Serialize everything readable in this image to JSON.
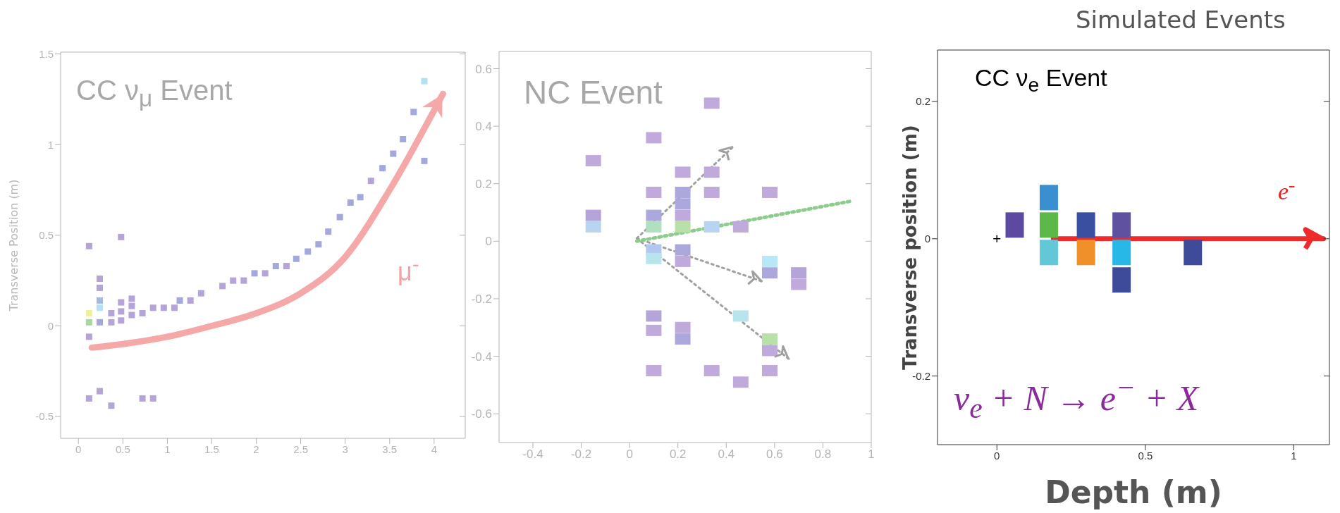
{
  "chart_data": [
    {
      "type": "scatter",
      "title": "CC ν$_{μ}$ Event",
      "ylabel": "Transverse Position (m)",
      "xlim": [
        -0.2,
        4.35
      ],
      "ylim": [
        -0.62,
        1.51
      ],
      "xticks": [
        0,
        0.5,
        1,
        1.5,
        2,
        2.5,
        3,
        3.5,
        4
      ],
      "yticks": [
        -0.5,
        0,
        0.5,
        1,
        1.5
      ],
      "annotations": [
        "μ$^{-}$"
      ],
      "series": [
        {
          "marker": "square",
          "x": [
            0.12,
            0.48,
            0.12,
            0.24,
            0.37,
            0.72,
            0.84,
            0.12,
            0.12,
            0.12,
            0.24,
            0.24,
            0.24,
            0.24,
            0.24,
            0.37,
            0.37,
            0.48,
            0.48,
            0.48,
            0.6,
            0.6,
            0.6,
            0.72,
            0.84,
            0.96,
            1.08,
            1.14,
            1.26,
            1.38,
            1.62,
            1.74,
            1.86,
            1.98,
            2.1,
            2.22,
            2.34,
            2.45,
            2.58,
            2.7,
            2.81,
            2.94,
            3.06,
            3.17,
            3.29,
            3.42,
            3.54,
            3.65,
            3.77,
            3.89,
            3.89
          ],
          "values": [
            0.44,
            0.49,
            -0.4,
            -0.36,
            -0.44,
            -0.4,
            -0.4,
            -0.06,
            0.02,
            0.07,
            0.02,
            0.1,
            0.14,
            0.21,
            0.26,
            0.02,
            0.07,
            0.03,
            0.08,
            0.13,
            0.06,
            0.11,
            0.15,
            0.07,
            0.1,
            0.1,
            0.1,
            0.14,
            0.14,
            0.18,
            0.22,
            0.25,
            0.25,
            0.29,
            0.29,
            0.33,
            0.33,
            0.37,
            0.41,
            0.45,
            0.52,
            0.6,
            0.68,
            0.71,
            0.8,
            0.87,
            0.95,
            1.03,
            1.18,
            1.35,
            0.91
          ],
          "colors": [
            "#b4a4d8",
            "#b4a4d8",
            "#b4a4d8",
            "#b4a4d8",
            "#b4a4d8",
            "#b4a4d8",
            "#b4a4d8",
            "#b4a4d8",
            "#a8d8a0",
            "#f0f0a0",
            "#a4a8dc",
            "#b4e0f4",
            "#a4b8e8",
            "#b4a4d8",
            "#b4a4d8",
            "#b4a4d8",
            "#b4a4d8",
            "#b4a4d8",
            "#b4a4d8",
            "#b4a4d8",
            "#b4a4d8",
            "#b4a4d8",
            "#b4a4d8",
            "#b4a4d8",
            "#b4a4d8",
            "#b4a4d8",
            "#b4a4d8",
            "#a4a8dc",
            "#b4a4d8",
            "#b4a4d8",
            "#b4a4d8",
            "#b4a4d8",
            "#b4a4d8",
            "#a4a8dc",
            "#b4a4d8",
            "#a4a8dc",
            "#b4a4d8",
            "#a4a8dc",
            "#a4a8dc",
            "#a4a8dc",
            "#a4a8dc",
            "#a4a8dc",
            "#a4a8dc",
            "#a4a8dc",
            "#b4a4d8",
            "#a4a8dc",
            "#a4a8dc",
            "#a4a8dc",
            "#a4a8dc",
            "#b4e0f4",
            "#a4a8dc"
          ]
        },
        {
          "type": "line",
          "marker": "none",
          "line_style": "solid",
          "color": "#f4a8a8",
          "x": [
            0.15,
            0.5,
            1,
            1.5,
            2,
            2.5,
            3,
            3.5,
            4.1
          ],
          "values": [
            -0.12,
            -0.1,
            -0.06,
            0.0,
            0.07,
            0.18,
            0.38,
            0.75,
            1.28
          ]
        }
      ]
    },
    {
      "type": "scatter",
      "title": "NC Event",
      "xlim": [
        -0.54,
        1.0
      ],
      "ylim": [
        -0.7,
        0.66
      ],
      "xticks": [
        -0.4,
        -0.2,
        0,
        0.2,
        0.4,
        0.6,
        0.8,
        1
      ],
      "yticks": [
        -0.6,
        -0.4,
        -0.2,
        0,
        0.2,
        0.4,
        0.6
      ],
      "series": [
        {
          "marker": "square",
          "x": [
            -0.15,
            -0.15,
            -0.15,
            0.1,
            0.1,
            0.1,
            0.1,
            0.1,
            0.1,
            0.1,
            0.1,
            0.1,
            0.22,
            0.22,
            0.22,
            0.22,
            0.22,
            0.22,
            0.22,
            0.22,
            0.22,
            0.34,
            0.34,
            0.34,
            0.34,
            0.34,
            0.46,
            0.46,
            0.46,
            0.58,
            0.58,
            0.58,
            0.58,
            0.58,
            0.58,
            0.7,
            0.7
          ],
          "values": [
            0.28,
            0.09,
            0.05,
            0.36,
            0.17,
            0.09,
            0.05,
            -0.03,
            -0.06,
            -0.26,
            -0.31,
            -0.45,
            0.24,
            0.17,
            0.13,
            0.09,
            0.05,
            -0.03,
            -0.07,
            -0.3,
            -0.34,
            0.48,
            0.24,
            0.17,
            0.05,
            -0.45,
            0.05,
            -0.26,
            -0.49,
            0.17,
            -0.07,
            -0.11,
            -0.34,
            -0.38,
            -0.45,
            -0.11,
            -0.15
          ],
          "colors": [
            "#c0aadc",
            "#b4a4d8",
            "#b8d4f0",
            "#c0aadc",
            "#c0aadc",
            "#aca8dc",
            "#b0e0c0",
            "#b0c8f0",
            "#b8e4ec",
            "#b4a4d8",
            "#c0aadc",
            "#c0aadc",
            "#c0aadc",
            "#aca8dc",
            "#aca8dc",
            "#c0aadc",
            "#b8e0a8",
            "#aca8dc",
            "#c0aadc",
            "#c0aadc",
            "#aca8dc",
            "#c0aadc",
            "#c0aadc",
            "#c0aadc",
            "#b8d4f0",
            "#c0aadc",
            "#c0aadc",
            "#b8e4ec",
            "#c0aadc",
            "#c0aadc",
            "#b8e8f8",
            "#aca8dc",
            "#b8e0a8",
            "#c0aadc",
            "#c0aadc",
            "#b4a4d8",
            "#c0aadc"
          ]
        },
        {
          "type": "line",
          "marker": "none",
          "line_style": "dotted",
          "color": "#a0a0a0",
          "x": [
            0.03,
            0.43
          ],
          "values": [
            0.01,
            0.33
          ]
        },
        {
          "type": "line",
          "marker": "none",
          "line_style": "dotted",
          "color": "#a0a0a0",
          "x": [
            0.03,
            0.55
          ],
          "values": [
            0.01,
            -0.14
          ]
        },
        {
          "type": "line",
          "marker": "none",
          "line_style": "dotted",
          "color": "#a0a0a0",
          "x": [
            0.03,
            0.66
          ],
          "values": [
            0.01,
            -0.41
          ]
        },
        {
          "type": "line",
          "marker": "none",
          "line_style": "dotted",
          "color": "#8ccc8c",
          "x": [
            0.03,
            0.92
          ],
          "values": [
            0.0,
            0.14
          ]
        }
      ]
    },
    {
      "type": "scatter",
      "title": "CC ν$_{e}$ Event",
      "xlabel": "Depth (m)",
      "ylabel": "Transverse position (m)",
      "xlim": [
        -0.2,
        1.12
      ],
      "ylim": [
        -0.3,
        0.275
      ],
      "xticks": [
        0,
        0.5,
        1
      ],
      "yticks": [
        -0.2,
        0,
        0.2
      ],
      "annotations": [
        "e$^{-}$",
        "ν$_{e}$ + N → e$^{−}$ + X",
        "Simulated Events"
      ],
      "series": [
        {
          "marker": "square",
          "x": [
            0.06,
            0.175,
            0.175,
            0.175,
            0.3,
            0.3,
            0.42,
            0.42,
            0.42,
            0.66
          ],
          "values": [
            0.02,
            0.06,
            0.02,
            -0.02,
            0.02,
            -0.02,
            0.02,
            -0.02,
            -0.06,
            -0.02
          ],
          "colors": [
            "#5b4aa0",
            "#3a8fd0",
            "#5cb848",
            "#62c8d8",
            "#3a4fa0",
            "#f0902a",
            "#6050a0",
            "#28b8e8",
            "#3e4a9a",
            "#3e4a9a"
          ]
        },
        {
          "marker": "cross",
          "color": "#000000",
          "x": [
            0
          ],
          "values": [
            0
          ]
        },
        {
          "type": "line",
          "marker": "none",
          "line_style": "solid",
          "color": "#ee2a2a",
          "x": [
            0.19,
            1.1
          ],
          "values": [
            0,
            0
          ]
        }
      ]
    }
  ]
}
